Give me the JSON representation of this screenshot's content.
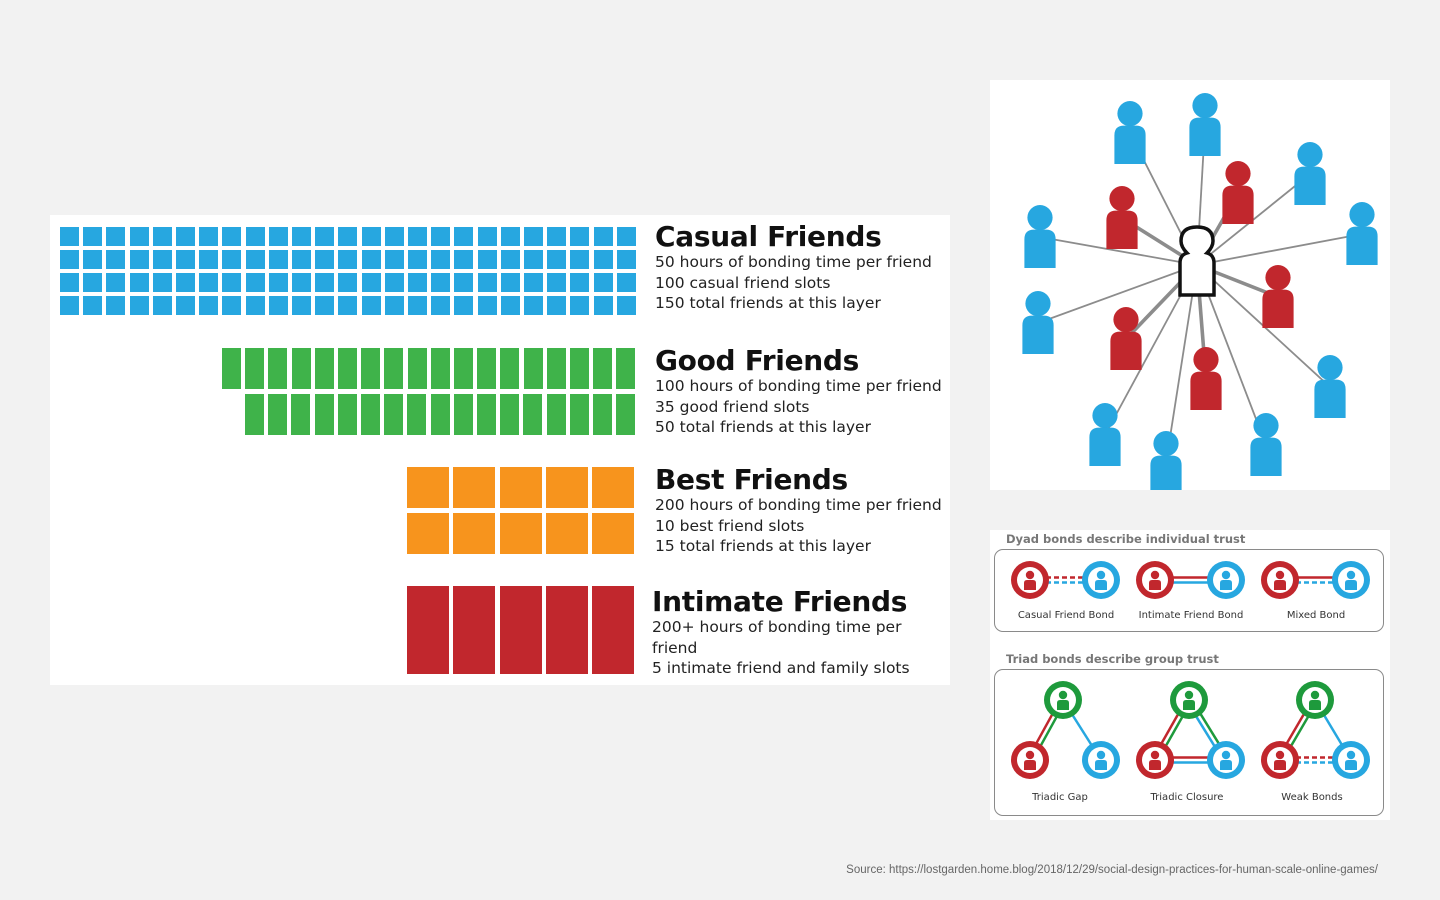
{
  "colors": {
    "casual": "#27a7e0",
    "good": "#3fb34a",
    "best": "#f7941d",
    "intimate": "#c1272d",
    "bond_green": "#1e9a3c"
  },
  "layers": [
    {
      "title": "Casual Friends",
      "lines": [
        "50 hours of bonding time per friend",
        "100 casual friend slots",
        "150 total friends at this layer"
      ],
      "slots": 100
    },
    {
      "title": "Good Friends",
      "lines": [
        "100 hours of bonding time per friend",
        "35 good friend slots",
        "50 total friends at this layer"
      ],
      "slots": 35
    },
    {
      "title": "Best Friends",
      "lines": [
        "200 hours of bonding time per friend",
        "10 best friend slots",
        "15 total friends at this layer"
      ],
      "slots": 10
    },
    {
      "title": "Intimate Friends",
      "lines": [
        "200+ hours of bonding time per friend",
        "5 intimate friend and family slots"
      ],
      "slots": 5
    }
  ],
  "network": {
    "center_icon": "person-outline-icon",
    "casual_count": 11,
    "intimate_count": 5
  },
  "bonds": {
    "dyad_heading": "Dyad bonds describe individual trust",
    "dyad_labels": [
      "Casual Friend Bond",
      "Intimate Friend Bond",
      "Mixed Bond"
    ],
    "triad_heading": "Triad bonds describe group trust",
    "triad_labels": [
      "Triadic Gap",
      "Triadic Closure",
      "Weak Bonds"
    ]
  },
  "source": "Source: https://lostgarden.home.blog/2018/12/29/social-design-practices-for-human-scale-online-games/"
}
